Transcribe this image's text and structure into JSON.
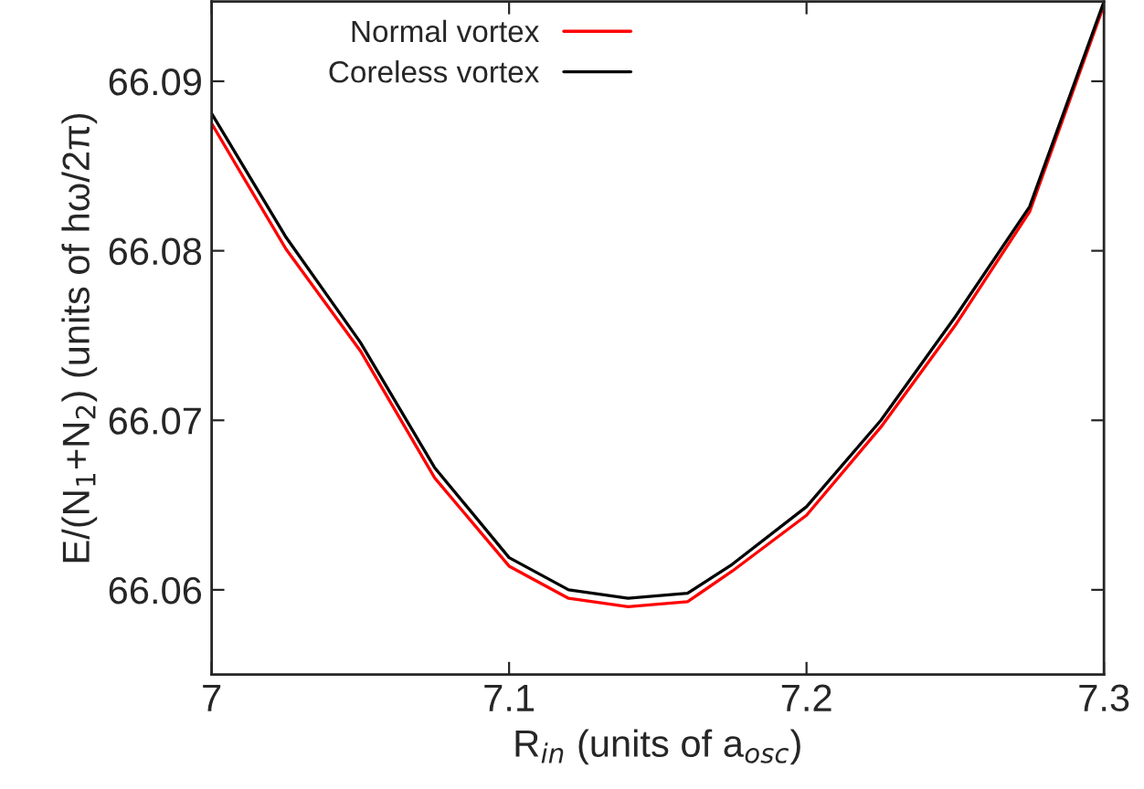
{
  "chart_data": {
    "type": "line",
    "xlabel": "R$_{in}$ (units of a$_{osc}$)",
    "ylabel": "E/(N$_{1}$+N$_{2}$) (units of hω/2π)",
    "x": [
      7.0,
      7.025,
      7.05,
      7.075,
      7.1,
      7.12,
      7.14,
      7.16,
      7.175,
      7.2,
      7.225,
      7.25,
      7.275,
      7.3
    ],
    "series": [
      {
        "name": "Normal vortex",
        "color": "#ff0000",
        "values": [
          66.0875,
          66.0801,
          66.0741,
          66.0666,
          66.0614,
          66.0595,
          66.059,
          66.0593,
          66.0611,
          66.0644,
          66.0696,
          66.0756,
          66.0823,
          66.0945
        ]
      },
      {
        "name": "Coreless vortex",
        "color": "#000000",
        "values": [
          66.0881,
          66.0808,
          66.0746,
          66.0672,
          66.0619,
          66.06,
          66.0595,
          66.0598,
          66.0615,
          66.0649,
          66.07,
          66.0761,
          66.0826,
          66.0947
        ]
      }
    ],
    "xlim": [
      7.0,
      7.3
    ],
    "xticks": [
      {
        "value": 7.0,
        "label": "7"
      },
      7.1,
      7.2,
      7.3
    ],
    "ylim": [
      66.055,
      66.0947
    ],
    "yticks": [
      66.06,
      66.07,
      66.08,
      66.09
    ],
    "grid": false,
    "legend": "top",
    "marker": "none",
    "line_style": "solid"
  }
}
